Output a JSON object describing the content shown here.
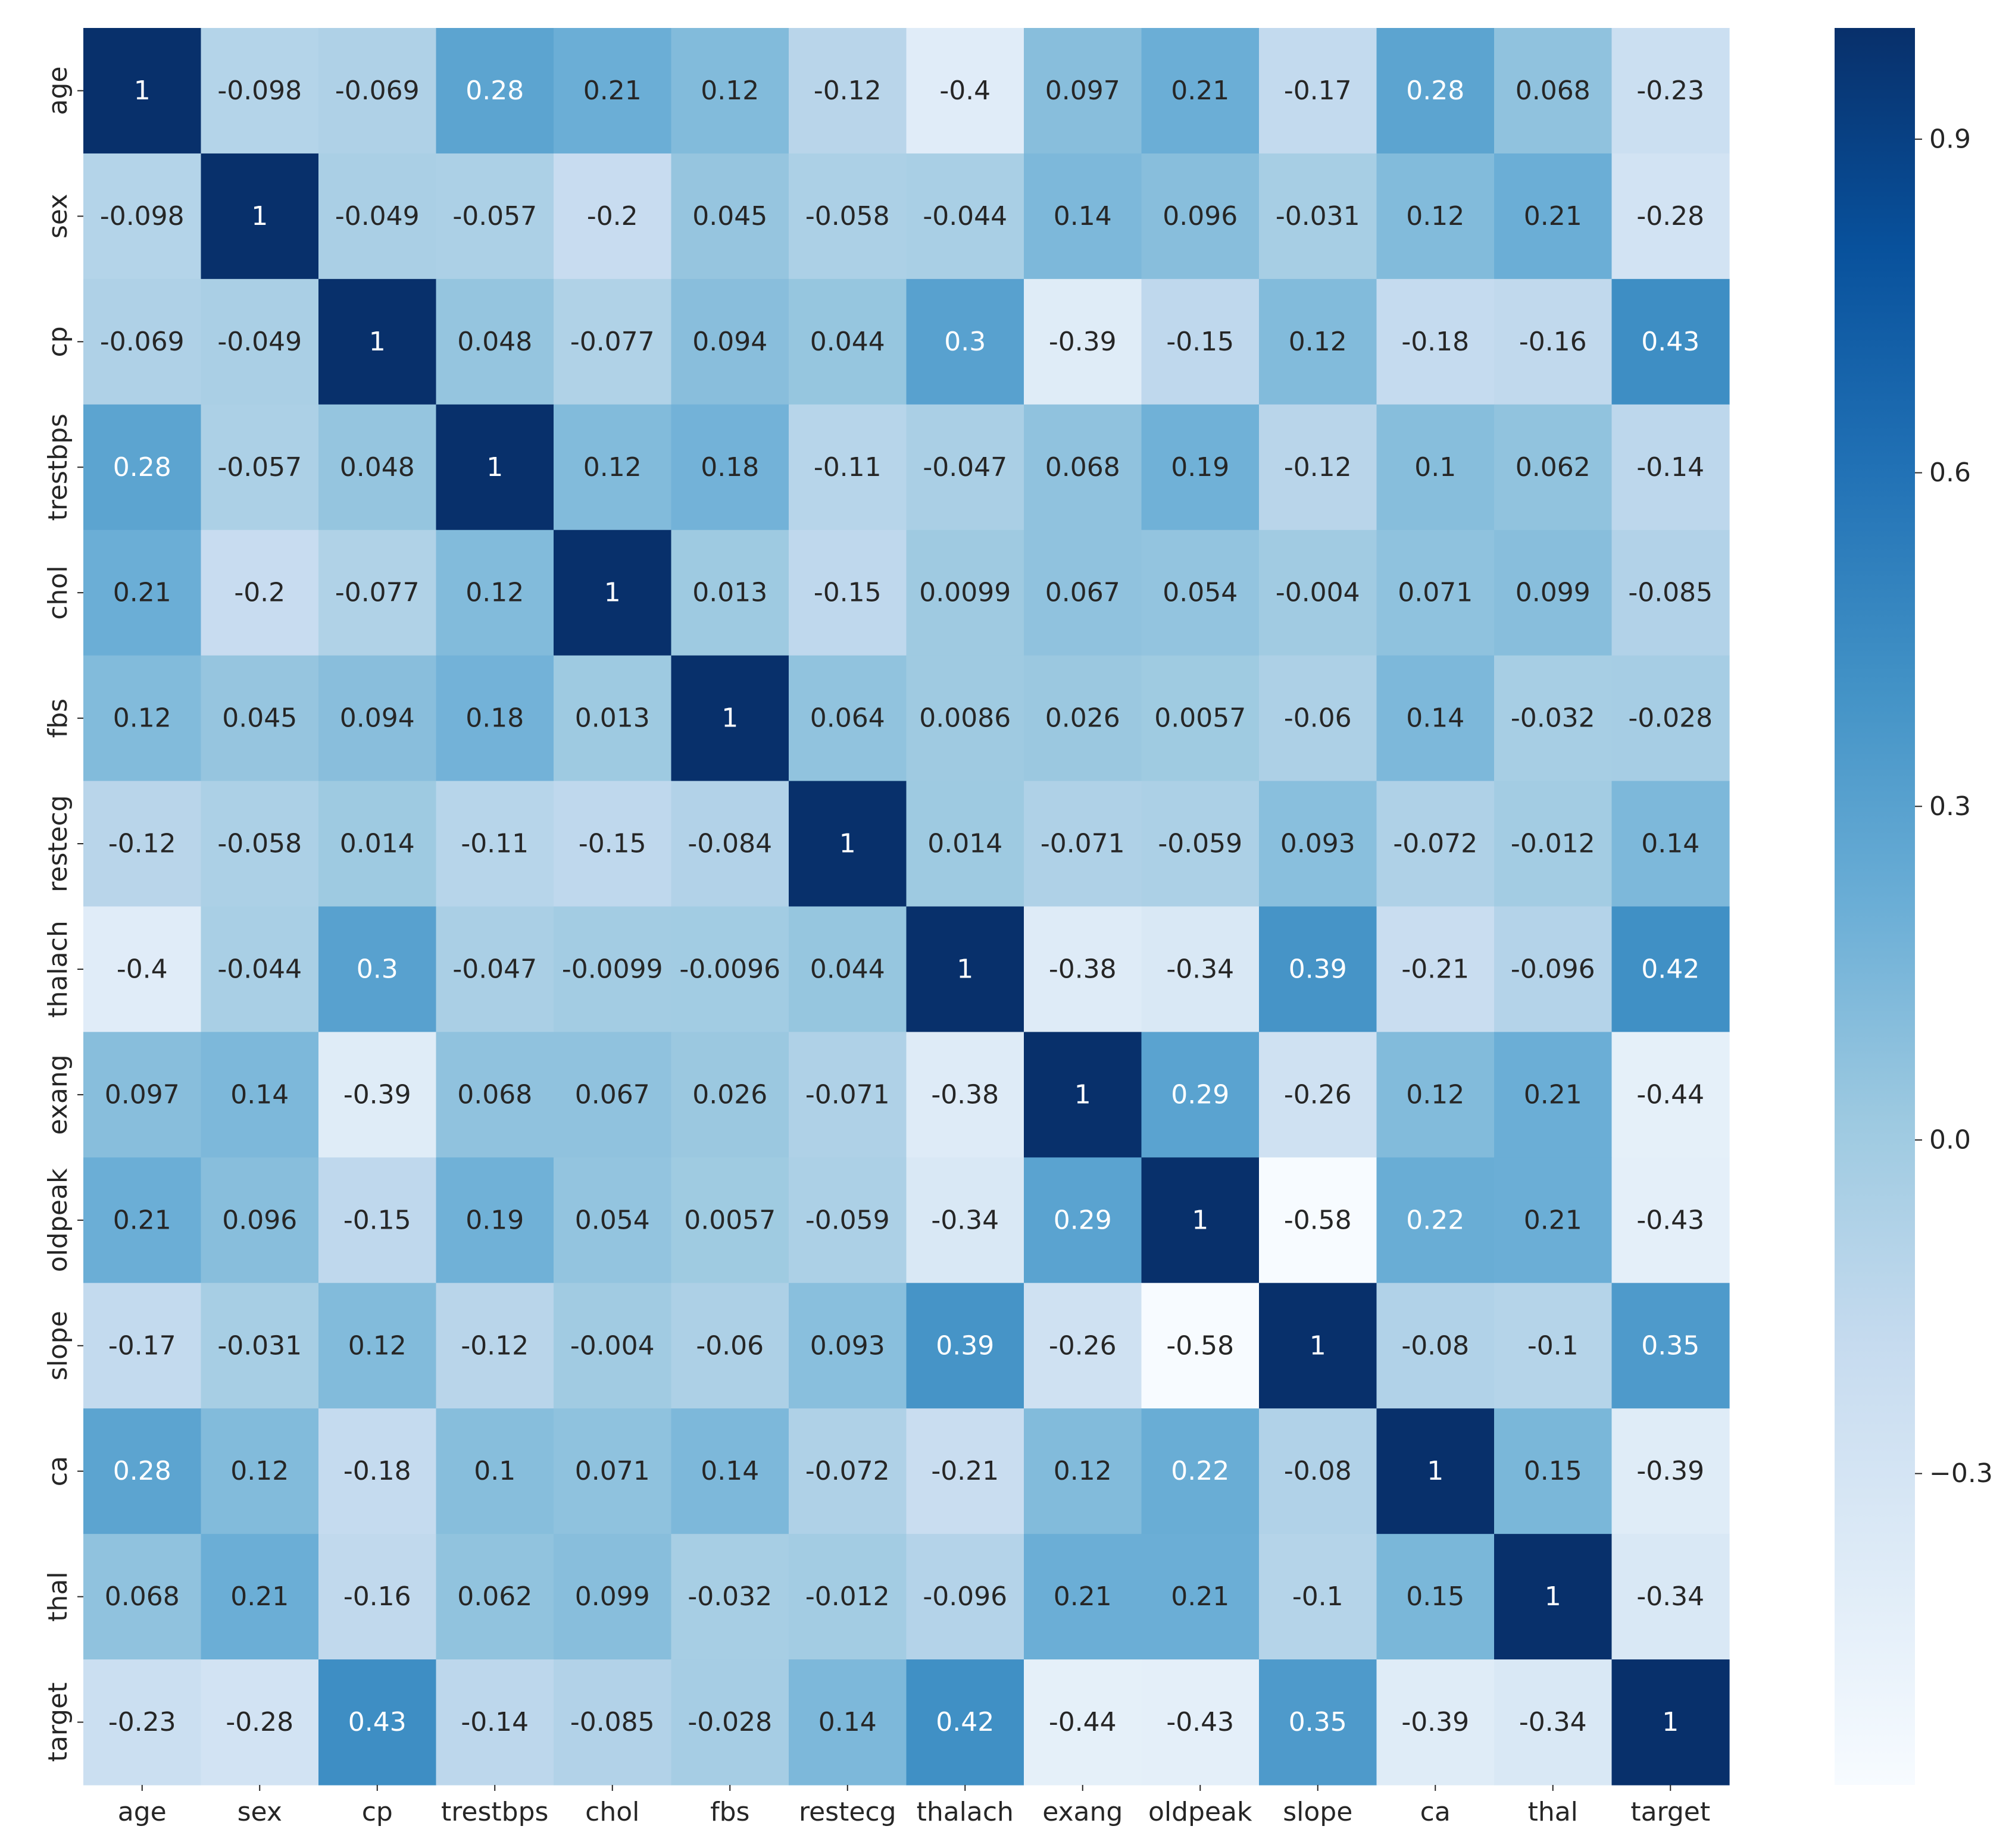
{
  "chart_data": {
    "type": "heatmap",
    "title": "",
    "xlabel": "",
    "ylabel": "",
    "x_categories": [
      "age",
      "sex",
      "cp",
      "trestbps",
      "chol",
      "fbs",
      "restecg",
      "thalach",
      "exang",
      "oldpeak",
      "slope",
      "ca",
      "thal",
      "target"
    ],
    "y_categories": [
      "age",
      "sex",
      "cp",
      "trestbps",
      "chol",
      "fbs",
      "restecg",
      "thalach",
      "exang",
      "oldpeak",
      "slope",
      "ca",
      "thal",
      "target"
    ],
    "values": [
      [
        1,
        -0.098,
        -0.069,
        0.28,
        0.21,
        0.12,
        -0.12,
        -0.4,
        0.097,
        0.21,
        -0.17,
        0.28,
        0.068,
        -0.23
      ],
      [
        -0.098,
        1,
        -0.049,
        -0.057,
        -0.2,
        0.045,
        -0.058,
        -0.044,
        0.14,
        0.096,
        -0.031,
        0.12,
        0.21,
        -0.28
      ],
      [
        -0.069,
        -0.049,
        1,
        0.048,
        -0.077,
        0.094,
        0.044,
        0.3,
        -0.39,
        -0.15,
        0.12,
        -0.18,
        -0.16,
        0.43
      ],
      [
        0.28,
        -0.057,
        0.048,
        1,
        0.12,
        0.18,
        -0.11,
        -0.047,
        0.068,
        0.19,
        -0.12,
        0.1,
        0.062,
        -0.14
      ],
      [
        0.21,
        -0.2,
        -0.077,
        0.12,
        1,
        0.013,
        -0.15,
        0.0099,
        0.067,
        0.054,
        -0.004,
        0.071,
        0.099,
        -0.085
      ],
      [
        0.12,
        0.045,
        0.094,
        0.18,
        0.013,
        1,
        0.064,
        0.0086,
        0.026,
        0.0057,
        -0.06,
        0.14,
        -0.032,
        -0.028
      ],
      [
        -0.12,
        -0.058,
        0.014,
        -0.11,
        -0.15,
        -0.084,
        1,
        0.014,
        -0.071,
        -0.059,
        0.093,
        -0.072,
        -0.012,
        0.14
      ],
      [
        -0.4,
        -0.044,
        0.3,
        -0.047,
        -0.0099,
        -0.0096,
        0.044,
        1,
        -0.38,
        -0.34,
        0.39,
        -0.21,
        -0.096,
        0.42
      ],
      [
        0.097,
        0.14,
        -0.39,
        0.068,
        0.067,
        0.026,
        -0.071,
        -0.38,
        1,
        0.29,
        -0.26,
        0.12,
        0.21,
        -0.44
      ],
      [
        0.21,
        0.096,
        -0.15,
        0.19,
        0.054,
        0.0057,
        -0.059,
        -0.34,
        0.29,
        1,
        -0.58,
        0.22,
        0.21,
        -0.43
      ],
      [
        -0.17,
        -0.031,
        0.12,
        -0.12,
        -0.004,
        -0.06,
        0.093,
        0.39,
        -0.26,
        -0.58,
        1,
        -0.08,
        -0.1,
        0.35
      ],
      [
        0.28,
        0.12,
        -0.18,
        0.1,
        0.071,
        0.14,
        -0.072,
        -0.21,
        0.12,
        0.22,
        -0.08,
        1,
        0.15,
        -0.39
      ],
      [
        0.068,
        0.21,
        -0.16,
        0.062,
        0.099,
        -0.032,
        -0.012,
        -0.096,
        0.21,
        0.21,
        -0.1,
        0.15,
        1,
        -0.34
      ],
      [
        -0.23,
        -0.28,
        0.43,
        -0.14,
        -0.085,
        -0.028,
        0.14,
        0.42,
        -0.44,
        -0.43,
        0.35,
        -0.39,
        -0.34,
        1
      ]
    ],
    "value_labels": [
      [
        "1",
        "-0.098",
        "-0.069",
        "0.28",
        "0.21",
        "0.12",
        "-0.12",
        "-0.4",
        "0.097",
        "0.21",
        "-0.17",
        "0.28",
        "0.068",
        "-0.23"
      ],
      [
        "-0.098",
        "1",
        "-0.049",
        "-0.057",
        "-0.2",
        "0.045",
        "-0.058",
        "-0.044",
        "0.14",
        "0.096",
        "-0.031",
        "0.12",
        "0.21",
        "-0.28"
      ],
      [
        "-0.069",
        "-0.049",
        "1",
        "0.048",
        "-0.077",
        "0.094",
        "0.044",
        "0.3",
        "-0.39",
        "-0.15",
        "0.12",
        "-0.18",
        "-0.16",
        "0.43"
      ],
      [
        "0.28",
        "-0.057",
        "0.048",
        "1",
        "0.12",
        "0.18",
        "-0.11",
        "-0.047",
        "0.068",
        "0.19",
        "-0.12",
        "0.1",
        "0.062",
        "-0.14"
      ],
      [
        "0.21",
        "-0.2",
        "-0.077",
        "0.12",
        "1",
        "0.013",
        "-0.15",
        "0.0099",
        "0.067",
        "0.054",
        "-0.004",
        "0.071",
        "0.099",
        "-0.085"
      ],
      [
        "0.12",
        "0.045",
        "0.094",
        "0.18",
        "0.013",
        "1",
        "0.064",
        "0.0086",
        "0.026",
        "0.0057",
        "-0.06",
        "0.14",
        "-0.032",
        "-0.028"
      ],
      [
        "-0.12",
        "-0.058",
        "0.014",
        "-0.11",
        "-0.15",
        "-0.084",
        "1",
        "0.014",
        "-0.071",
        "-0.059",
        "0.093",
        "-0.072",
        "-0.012",
        "0.14"
      ],
      [
        "-0.4",
        "-0.044",
        "0.3",
        "-0.047",
        "-0.0099",
        "-0.0096",
        "0.044",
        "1",
        "-0.38",
        "-0.34",
        "0.39",
        "-0.21",
        "-0.096",
        "0.42"
      ],
      [
        "0.097",
        "0.14",
        "-0.39",
        "0.068",
        "0.067",
        "0.026",
        "-0.071",
        "-0.38",
        "1",
        "0.29",
        "-0.26",
        "0.12",
        "0.21",
        "-0.44"
      ],
      [
        "0.21",
        "0.096",
        "-0.15",
        "0.19",
        "0.054",
        "0.0057",
        "-0.059",
        "-0.34",
        "0.29",
        "1",
        "-0.58",
        "0.22",
        "0.21",
        "-0.43"
      ],
      [
        "-0.17",
        "-0.031",
        "0.12",
        "-0.12",
        "-0.004",
        "-0.06",
        "0.093",
        "0.39",
        "-0.26",
        "-0.58",
        "1",
        "-0.08",
        "-0.1",
        "0.35"
      ],
      [
        "0.28",
        "0.12",
        "-0.18",
        "0.1",
        "0.071",
        "0.14",
        "-0.072",
        "-0.21",
        "0.12",
        "0.22",
        "-0.08",
        "1",
        "0.15",
        "-0.39"
      ],
      [
        "0.068",
        "0.21",
        "-0.16",
        "0.062",
        "0.099",
        "-0.032",
        "-0.012",
        "-0.096",
        "0.21",
        "0.21",
        "-0.1",
        "0.15",
        "1",
        "-0.34"
      ],
      [
        "-0.23",
        "-0.28",
        "0.43",
        "-0.14",
        "-0.085",
        "-0.028",
        "0.14",
        "0.42",
        "-0.44",
        "-0.43",
        "0.35",
        "-0.39",
        "-0.34",
        "1"
      ]
    ],
    "colormap": "Blues",
    "color_range": [
      -0.58,
      1
    ],
    "colorbar_ticks": [
      0.9,
      0.6,
      0.3,
      0.0,
      -0.3
    ],
    "colorbar_tick_labels": [
      "0.9",
      "0.6",
      "0.3",
      "0.0",
      "−0.3"
    ],
    "colors": {
      "low": "#f7fbff",
      "mid": "#6baed6",
      "high": "#08306b",
      "text_dark": "#262626",
      "text_light": "#ffffff"
    },
    "legend_placement": "right",
    "grid": false
  }
}
